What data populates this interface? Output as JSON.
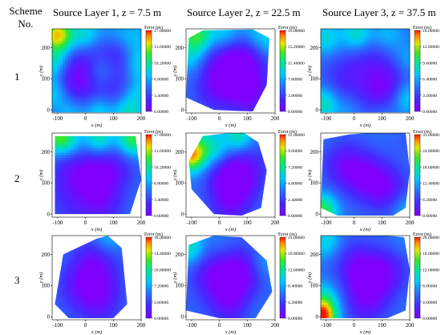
{
  "header": {
    "scheme_label_line1": "Scheme",
    "scheme_label_line2": "No.",
    "columns": [
      "Source Layer 1, z = 7.5 m",
      "Source Layer 2, z = 22.5 m",
      "Source Layer 3, z = 37.5 m"
    ],
    "rows": [
      "1",
      "2",
      "3"
    ]
  },
  "chart_data": [
    {
      "type": "heatmap",
      "scheme": "1",
      "layer": "Source Layer 1, z = 7.5 m",
      "xlabel": "x (m)",
      "ylabel": "y (m)",
      "x_ticks": [
        "-100",
        "0",
        "100",
        "200"
      ],
      "y_ticks": [
        "0",
        "100",
        "200"
      ],
      "xlim": [
        -120,
        200
      ],
      "ylim": [
        -10,
        260
      ],
      "colorbar_title": "Error (m)",
      "colorbar_ticks": [
        "17.00000",
        "13.60000",
        "10.20000",
        "6.80000",
        "3.40000",
        "0.00000"
      ],
      "colorbar_range": [
        0,
        17
      ],
      "boundary": [
        [
          -120,
          -8
        ],
        [
          200,
          -8
        ],
        [
          200,
          260
        ],
        [
          -120,
          260
        ]
      ],
      "hotspots": [
        [
          -100,
          240,
          15
        ],
        [
          0,
          240,
          9
        ],
        [
          100,
          240,
          7
        ],
        [
          170,
          230,
          8
        ],
        [
          190,
          150,
          9
        ],
        [
          190,
          60,
          8
        ],
        [
          150,
          -5,
          10
        ],
        [
          50,
          -5,
          9
        ],
        [
          -50,
          -5,
          8
        ],
        [
          -110,
          150,
          10
        ],
        [
          -110,
          60,
          9
        ],
        [
          60,
          130,
          8
        ]
      ],
      "coldspots": [
        [
          -60,
          110,
          1.5
        ],
        [
          120,
          180,
          2
        ],
        [
          20,
          160,
          3
        ],
        [
          110,
          50,
          2.5
        ],
        [
          -20,
          50,
          3
        ]
      ]
    },
    {
      "type": "heatmap",
      "scheme": "1",
      "layer": "Source Layer 2, z = 22.5 m",
      "xlabel": "x (m)",
      "ylabel": "y (m)",
      "x_ticks": [
        "-100",
        "0",
        "100",
        "200"
      ],
      "y_ticks": [
        "0",
        "100",
        "200"
      ],
      "xlim": [
        -120,
        200
      ],
      "ylim": [
        -10,
        260
      ],
      "colorbar_title": "Error (m)",
      "colorbar_ticks": [
        "19.00000",
        "15.20000",
        "11.40000",
        "7.60000",
        "3.80000",
        "0.00000"
      ],
      "colorbar_range": [
        0,
        19
      ],
      "boundary": [
        [
          -120,
          40
        ],
        [
          -110,
          230
        ],
        [
          -60,
          255
        ],
        [
          120,
          258
        ],
        [
          180,
          230
        ],
        [
          170,
          80
        ],
        [
          120,
          -5
        ],
        [
          -20,
          0
        ]
      ],
      "hotspots": [
        [
          -80,
          240,
          13
        ],
        [
          20,
          250,
          9
        ],
        [
          120,
          250,
          8
        ],
        [
          175,
          220,
          9
        ],
        [
          -110,
          170,
          9
        ],
        [
          -100,
          60,
          6
        ]
      ],
      "coldspots": [
        [
          60,
          100,
          1
        ],
        [
          10,
          140,
          2.5
        ],
        [
          100,
          170,
          2
        ],
        [
          120,
          40,
          2
        ],
        [
          -30,
          60,
          3
        ]
      ]
    },
    {
      "type": "heatmap",
      "scheme": "1",
      "layer": "Source Layer 3, z = 37.5 m",
      "xlabel": "x (m)",
      "ylabel": "y (m)",
      "x_ticks": [
        "-100",
        "0",
        "100",
        "200"
      ],
      "y_ticks": [
        "0",
        "100",
        "200"
      ],
      "xlim": [
        -120,
        200
      ],
      "ylim": [
        -10,
        260
      ],
      "colorbar_title": "Error (m)",
      "colorbar_ticks": [
        "16.00000",
        "12.80000",
        "9.60000",
        "6.40000",
        "3.20000",
        "0.00000"
      ],
      "colorbar_range": [
        0,
        16
      ],
      "boundary": [
        [
          -120,
          -8
        ],
        [
          200,
          -8
        ],
        [
          200,
          260
        ],
        [
          -120,
          260
        ]
      ],
      "hotspots": [
        [
          -100,
          230,
          8
        ],
        [
          10,
          240,
          9
        ],
        [
          120,
          240,
          7
        ],
        [
          190,
          160,
          7
        ],
        [
          190,
          40,
          8
        ],
        [
          -110,
          20,
          9
        ],
        [
          -20,
          -5,
          6
        ],
        [
          100,
          -5,
          6
        ]
      ],
      "coldspots": [
        [
          90,
          60,
          1
        ],
        [
          -40,
          100,
          2.5
        ],
        [
          40,
          170,
          3
        ],
        [
          140,
          120,
          3
        ]
      ]
    },
    {
      "type": "heatmap",
      "scheme": "2",
      "layer": "Source Layer 1, z = 7.5 m",
      "xlabel": "x (m)",
      "ylabel": "y (m)",
      "x_ticks": [
        "-100",
        "0",
        "100",
        "200"
      ],
      "y_ticks": [
        "0",
        "100",
        "200"
      ],
      "xlim": [
        -120,
        200
      ],
      "ylim": [
        -10,
        260
      ],
      "colorbar_title": "Error (m)",
      "colorbar_ticks": [
        "17.00000",
        "13.60000",
        "10.20000",
        "6.80000",
        "3.40000",
        "0.00000"
      ],
      "colorbar_range": [
        0,
        17
      ],
      "boundary": [
        [
          -110,
          0
        ],
        [
          -110,
          250
        ],
        [
          180,
          250
        ],
        [
          200,
          110
        ],
        [
          160,
          0
        ]
      ],
      "hotspots": [
        [
          -100,
          245,
          11
        ],
        [
          50,
          245,
          10
        ],
        [
          170,
          240,
          12
        ],
        [
          -60,
          235,
          8
        ]
      ],
      "coldspots": [
        [
          30,
          120,
          0.8
        ],
        [
          -60,
          150,
          2.5
        ],
        [
          110,
          150,
          2.5
        ],
        [
          60,
          30,
          2
        ],
        [
          -60,
          40,
          3
        ]
      ]
    },
    {
      "type": "heatmap",
      "scheme": "2",
      "layer": "Source Layer 2, z = 22.5 m",
      "xlabel": "x (m)",
      "ylabel": "y (m)",
      "x_ticks": [
        "-100",
        "0",
        "100",
        "200"
      ],
      "y_ticks": [
        "0",
        "100",
        "200"
      ],
      "xlim": [
        -120,
        200
      ],
      "ylim": [
        -10,
        260
      ],
      "colorbar_title": "Error (m)",
      "colorbar_ticks": [
        "12.00000",
        "9.60000",
        "7.20000",
        "4.80000",
        "2.40000",
        "0.00000"
      ],
      "colorbar_range": [
        0,
        12
      ],
      "boundary": [
        [
          -110,
          170
        ],
        [
          -60,
          250
        ],
        [
          80,
          265
        ],
        [
          140,
          230
        ],
        [
          170,
          140
        ],
        [
          150,
          20
        ],
        [
          80,
          -5
        ],
        [
          -20,
          0
        ],
        [
          -100,
          80
        ]
      ],
      "hotspots": [
        [
          -100,
          190,
          11
        ],
        [
          -10,
          200,
          6
        ],
        [
          70,
          250,
          7
        ],
        [
          -50,
          240,
          5
        ]
      ],
      "coldspots": [
        [
          60,
          90,
          0.6
        ],
        [
          20,
          140,
          1.5
        ],
        [
          110,
          160,
          2
        ],
        [
          30,
          20,
          2
        ]
      ]
    },
    {
      "type": "heatmap",
      "scheme": "2",
      "layer": "Source Layer 3, z = 37.5 m",
      "xlabel": "x (m)",
      "ylabel": "y (m)",
      "x_ticks": [
        "-100",
        "0",
        "100",
        "200"
      ],
      "y_ticks": [
        "0",
        "100",
        "200"
      ],
      "xlim": [
        -120,
        200
      ],
      "ylim": [
        -10,
        260
      ],
      "colorbar_title": "Error (m)",
      "colorbar_ticks": [
        "31.00000",
        "24.80000",
        "18.60000",
        "12.40000",
        "6.20000",
        "0.00000"
      ],
      "colorbar_range": [
        0,
        31
      ],
      "boundary": [
        [
          -120,
          20
        ],
        [
          -110,
          240
        ],
        [
          -20,
          255
        ],
        [
          100,
          265
        ],
        [
          185,
          262
        ],
        [
          200,
          140
        ],
        [
          185,
          20
        ],
        [
          140,
          -5
        ],
        [
          -60,
          -5
        ]
      ],
      "hotspots": [
        [
          -115,
          10,
          22
        ],
        [
          185,
          15,
          14
        ],
        [
          -110,
          240,
          10
        ],
        [
          190,
          240,
          8
        ]
      ],
      "coldspots": [
        [
          40,
          120,
          2
        ],
        [
          -40,
          160,
          3
        ],
        [
          120,
          80,
          2.5
        ]
      ]
    },
    {
      "type": "heatmap",
      "scheme": "3",
      "layer": "Source Layer 1, z = 7.5 m",
      "xlabel": "x (m)",
      "ylabel": "y (m)",
      "x_ticks": [
        "-100",
        "0",
        "100",
        "200"
      ],
      "y_ticks": [
        "0",
        "100",
        "200"
      ],
      "xlim": [
        -120,
        200
      ],
      "ylim": [
        -10,
        260
      ],
      "colorbar_title": "Error (m)",
      "colorbar_ticks": [
        "18.00000",
        "14.40000",
        "10.80000",
        "7.20000",
        "3.60000",
        "0.00000"
      ],
      "colorbar_range": [
        0,
        18
      ],
      "boundary": [
        [
          -110,
          40
        ],
        [
          -80,
          200
        ],
        [
          40,
          250
        ],
        [
          80,
          260
        ],
        [
          130,
          220
        ],
        [
          150,
          40
        ],
        [
          100,
          -5
        ],
        [
          -60,
          -5
        ]
      ],
      "hotspots": [
        [
          80,
          255,
          8
        ],
        [
          -20,
          210,
          6
        ],
        [
          140,
          180,
          5
        ]
      ],
      "coldspots": [
        [
          20,
          180,
          1.5
        ],
        [
          60,
          100,
          2.5
        ],
        [
          -30,
          90,
          2.5
        ],
        [
          50,
          30,
          3
        ]
      ]
    },
    {
      "type": "heatmap",
      "scheme": "3",
      "layer": "Source Layer 2, z = 22.5 m",
      "xlabel": "x (m)",
      "ylabel": "y (m)",
      "x_ticks": [
        "-100",
        "0",
        "100",
        "200"
      ],
      "y_ticks": [
        "0",
        "100",
        "200"
      ],
      "xlim": [
        -120,
        200
      ],
      "ylim": [
        -10,
        260
      ],
      "colorbar_title": "Error (m)",
      "colorbar_ticks": [
        "21.00000",
        "16.80000",
        "12.60000",
        "8.40000",
        "4.20000",
        "0.00000"
      ],
      "colorbar_range": [
        0,
        21
      ],
      "boundary": [
        [
          -120,
          20
        ],
        [
          -110,
          230
        ],
        [
          -20,
          260
        ],
        [
          80,
          255
        ],
        [
          170,
          180
        ],
        [
          190,
          80
        ],
        [
          130,
          -5
        ],
        [
          0,
          -5
        ]
      ],
      "hotspots": [
        [
          -110,
          220,
          12
        ],
        [
          -10,
          245,
          7
        ],
        [
          160,
          170,
          9
        ],
        [
          120,
          20,
          7
        ],
        [
          -100,
          40,
          6
        ]
      ],
      "coldspots": [
        [
          30,
          110,
          1.5
        ],
        [
          90,
          150,
          2
        ],
        [
          -40,
          140,
          3
        ],
        [
          40,
          30,
          3
        ]
      ]
    },
    {
      "type": "heatmap",
      "scheme": "3",
      "layer": "Source Layer 3, z = 37.5 m",
      "xlabel": "x (m)",
      "ylabel": "y (m)",
      "x_ticks": [
        "-100",
        "0",
        "100",
        "200"
      ],
      "y_ticks": [
        "0",
        "100",
        "200"
      ],
      "xlim": [
        -120,
        200
      ],
      "ylim": [
        -10,
        260
      ],
      "colorbar_title": "Error (m)",
      "colorbar_ticks": [
        "20.00000",
        "16.00000",
        "12.00000",
        "8.00000",
        "4.00000",
        "0.00000"
      ],
      "colorbar_range": [
        0,
        20
      ],
      "boundary": [
        [
          -120,
          -5
        ],
        [
          -120,
          260
        ],
        [
          60,
          265
        ],
        [
          180,
          255
        ],
        [
          200,
          150
        ],
        [
          185,
          20
        ],
        [
          120,
          -5
        ]
      ],
      "hotspots": [
        [
          -115,
          0,
          20
        ],
        [
          -110,
          60,
          10
        ],
        [
          -100,
          240,
          10
        ],
        [
          180,
          240,
          7
        ],
        [
          180,
          40,
          6
        ]
      ],
      "coldspots": [
        [
          60,
          120,
          1
        ],
        [
          0,
          170,
          2.5
        ],
        [
          130,
          150,
          3
        ],
        [
          40,
          40,
          2.5
        ]
      ]
    }
  ]
}
